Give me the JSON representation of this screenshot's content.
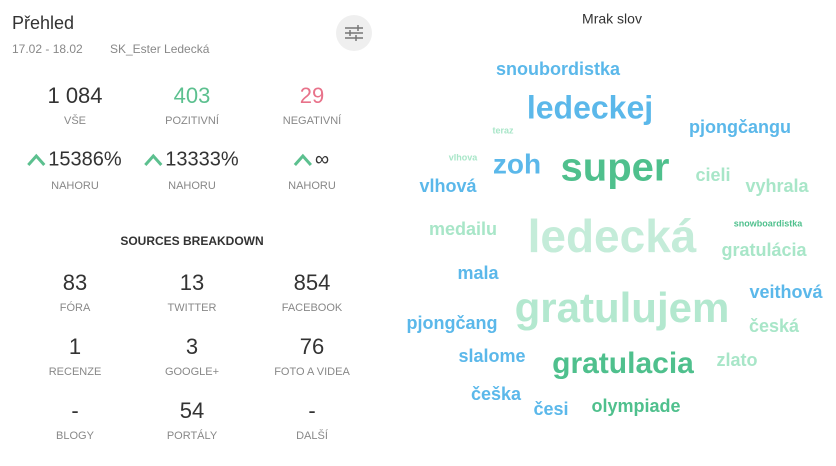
{
  "header": {
    "title": "Přehled",
    "date_range": "17.02 - 18.02",
    "profile": "SK_Ester Ledecká"
  },
  "stats": [
    {
      "value": "1 084",
      "label": "VŠE",
      "color": "#333333"
    },
    {
      "value": "403",
      "label": "POZITIVNÍ",
      "color": "#5cc08f"
    },
    {
      "value": "29",
      "label": "NEGATIVNÍ",
      "color": "#e8728a"
    }
  ],
  "changes": [
    {
      "value": "15386%",
      "label": "NAHORU"
    },
    {
      "value": "13333%",
      "label": "NAHORU"
    },
    {
      "value": "∞",
      "label": "NAHORU"
    }
  ],
  "sources": {
    "title": "SOURCES BREAKDOWN",
    "items": [
      {
        "value": "83",
        "label": "FÓRA"
      },
      {
        "value": "13",
        "label": "TWITTER"
      },
      {
        "value": "854",
        "label": "FACEBOOK"
      },
      {
        "value": "1",
        "label": "RECENZE"
      },
      {
        "value": "3",
        "label": "GOOGLE+"
      },
      {
        "value": "76",
        "label": "FOTO A VIDEA"
      },
      {
        "value": "-",
        "label": "BLOGY"
      },
      {
        "value": "54",
        "label": "PORTÁLY"
      },
      {
        "value": "-",
        "label": "DALŠÍ"
      }
    ]
  },
  "word_cloud": {
    "title": "Mrak slov",
    "words": [
      {
        "text": "snoubordistka",
        "color": "#5bb8ea"
      },
      {
        "text": "ledeckej",
        "color": "#5bb8ea"
      },
      {
        "text": "teraz",
        "color": "#a8e6c8"
      },
      {
        "text": "pjongčangu",
        "color": "#5bb8ea"
      },
      {
        "text": "vlhova",
        "color": "#a8e6c8"
      },
      {
        "text": "zoh",
        "color": "#5bb8ea"
      },
      {
        "text": "super",
        "color": "#4fc08d"
      },
      {
        "text": "cieli",
        "color": "#a8e6c8"
      },
      {
        "text": "vyhrala",
        "color": "#a8e6c8"
      },
      {
        "text": "vlhová",
        "color": "#5bb8ea"
      },
      {
        "text": "medailu",
        "color": "#a8e6c8"
      },
      {
        "text": "ledecká",
        "color": "#c4ecd9"
      },
      {
        "text": "snowboardistka",
        "color": "#4fc08d"
      },
      {
        "text": "gratulácia",
        "color": "#a8e6c8"
      },
      {
        "text": "mala",
        "color": "#5bb8ea"
      },
      {
        "text": "veithová",
        "color": "#5bb8ea"
      },
      {
        "text": "pjongčang",
        "color": "#5bb8ea"
      },
      {
        "text": "gratulujem",
        "color": "#b3e8cf"
      },
      {
        "text": "česká",
        "color": "#a8e6c8"
      },
      {
        "text": "slalome",
        "color": "#5bb8ea"
      },
      {
        "text": "gratulacia",
        "color": "#4fc08d"
      },
      {
        "text": "zlato",
        "color": "#a8e6c8"
      },
      {
        "text": "češka",
        "color": "#5bb8ea"
      },
      {
        "text": "česi",
        "color": "#5bb8ea"
      },
      {
        "text": "olympiade",
        "color": "#4fc08d"
      }
    ]
  }
}
